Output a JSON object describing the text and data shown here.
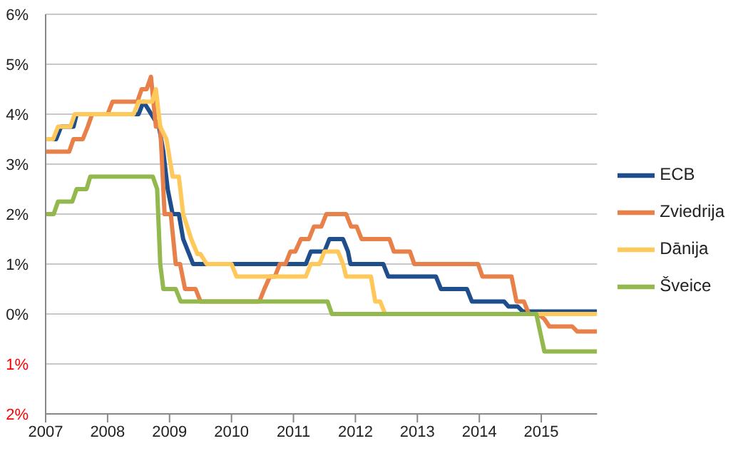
{
  "chart_data": {
    "type": "line",
    "xlim": [
      2007,
      2015.9
    ],
    "xticks": [
      2007,
      2008,
      2009,
      2010,
      2011,
      2012,
      2013,
      2014,
      2015
    ],
    "ylim": [
      -2,
      6
    ],
    "yticks": [
      {
        "value": 6,
        "label": "6%"
      },
      {
        "value": 5,
        "label": "5%"
      },
      {
        "value": 4,
        "label": "4%"
      },
      {
        "value": 3,
        "label": "3%"
      },
      {
        "value": 2,
        "label": "2%"
      },
      {
        "value": 1,
        "label": "1%"
      },
      {
        "value": 0,
        "label": "0%"
      },
      {
        "value": -1,
        "label": "1%"
      },
      {
        "value": -2,
        "label": "2%"
      }
    ],
    "grid": "y",
    "legend": "right",
    "marker": "none",
    "line_style": "solid",
    "series": [
      {
        "name": "ECB",
        "color": "#1f4e8c",
        "x": [
          2007,
          2007.17,
          2007.25,
          2007.45,
          2007.5,
          2008.5,
          2008.58,
          2008.83,
          2008.9,
          2008.97,
          2009.05,
          2009.15,
          2009.22,
          2009.3,
          2009.38,
          2011.2,
          2011.28,
          2011.5,
          2011.58,
          2011.8,
          2011.88,
          2011.92,
          2012.45,
          2012.53,
          2013.3,
          2013.38,
          2013.8,
          2013.88,
          2014.4,
          2014.47,
          2014.62,
          2014.7,
          2015.9
        ],
        "values": [
          3.5,
          3.5,
          3.75,
          3.75,
          4.0,
          4.0,
          4.25,
          3.75,
          3.25,
          2.5,
          2.0,
          2.0,
          1.5,
          1.25,
          1.0,
          1.0,
          1.25,
          1.25,
          1.5,
          1.5,
          1.25,
          1.0,
          1.0,
          0.75,
          0.75,
          0.5,
          0.5,
          0.25,
          0.25,
          0.15,
          0.15,
          0.05,
          0.05
        ]
      },
      {
        "name": "Zviedrija",
        "color": "#e8804a",
        "x": [
          2007,
          2007.38,
          2007.45,
          2007.6,
          2007.68,
          2007.75,
          2008.0,
          2008.08,
          2008.48,
          2008.55,
          2008.63,
          2008.7,
          2008.78,
          2008.85,
          2008.92,
          2009.02,
          2009.1,
          2009.17,
          2009.25,
          2009.42,
          2009.5,
          2010.45,
          2010.53,
          2010.62,
          2010.7,
          2010.78,
          2010.87,
          2010.95,
          2011.03,
          2011.12,
          2011.25,
          2011.33,
          2011.45,
          2011.53,
          2011.85,
          2011.93,
          2012.02,
          2012.1,
          2012.55,
          2012.62,
          2012.88,
          2012.95,
          2013.98,
          2014.05,
          2014.52,
          2014.6,
          2014.72,
          2014.8,
          2014.95,
          2015.05,
          2015.13,
          2015.5,
          2015.58,
          2015.9
        ],
        "values": [
          3.25,
          3.25,
          3.5,
          3.5,
          3.75,
          4.0,
          4.0,
          4.25,
          4.25,
          4.5,
          4.5,
          4.75,
          3.75,
          3.75,
          2.0,
          2.0,
          1.0,
          1.0,
          0.5,
          0.5,
          0.25,
          0.25,
          0.5,
          0.75,
          0.75,
          1.0,
          1.0,
          1.25,
          1.25,
          1.5,
          1.5,
          1.75,
          1.75,
          2.0,
          2.0,
          1.75,
          1.75,
          1.5,
          1.5,
          1.25,
          1.25,
          1.0,
          1.0,
          0.75,
          0.75,
          0.25,
          0.25,
          0.0,
          0.0,
          -0.1,
          -0.25,
          -0.25,
          -0.35,
          -0.35
        ]
      },
      {
        "name": "Dānija",
        "color": "#ffc85a",
        "x": [
          2007,
          2007.12,
          2007.2,
          2007.4,
          2007.47,
          2008.42,
          2008.5,
          2008.72,
          2008.78,
          2008.85,
          2008.95,
          2009.05,
          2009.15,
          2009.22,
          2009.35,
          2009.45,
          2009.5,
          2009.6,
          2010.0,
          2010.08,
          2011.2,
          2011.28,
          2011.42,
          2011.5,
          2011.72,
          2011.8,
          2011.85,
          2012.25,
          2012.32,
          2012.4,
          2012.48,
          2015.9
        ],
        "values": [
          3.5,
          3.5,
          3.75,
          3.75,
          4.0,
          4.0,
          4.25,
          4.25,
          4.5,
          3.75,
          3.5,
          2.75,
          2.75,
          2.0,
          1.5,
          1.2,
          1.2,
          1.0,
          1.0,
          0.75,
          0.75,
          1.0,
          1.0,
          1.25,
          1.25,
          1.0,
          0.75,
          0.75,
          0.25,
          0.25,
          0.0,
          0.0
        ]
      },
      {
        "name": "Šveice",
        "color": "#92b84e",
        "x": [
          2007,
          2007.13,
          2007.2,
          2007.43,
          2007.5,
          2007.66,
          2007.72,
          2008.73,
          2008.8,
          2008.85,
          2008.9,
          2009.1,
          2009.18,
          2011.55,
          2011.62,
          2014.92,
          2015.05,
          2015.9
        ],
        "values": [
          2.0,
          2.0,
          2.25,
          2.25,
          2.5,
          2.5,
          2.75,
          2.75,
          2.5,
          1.0,
          0.5,
          0.5,
          0.25,
          0.25,
          0.0,
          0.0,
          -0.75,
          -0.75
        ]
      }
    ]
  }
}
